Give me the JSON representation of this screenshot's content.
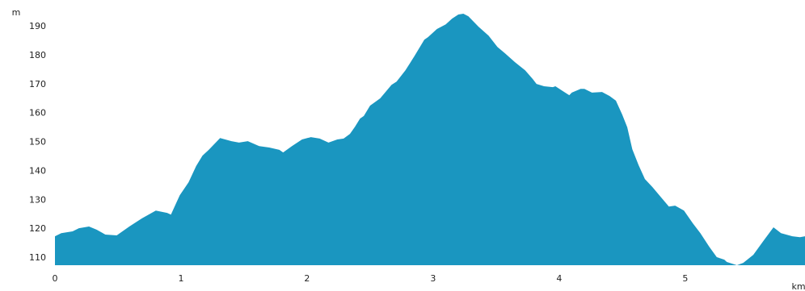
{
  "chart_data": {
    "type": "area",
    "x_label": "km",
    "y_label": "m",
    "color": "#1a96c0",
    "x": [
      0,
      0.05,
      0.14,
      0.19,
      0.27,
      0.33,
      0.4,
      0.49,
      0.59,
      0.69,
      0.8,
      0.89,
      0.92,
      0.99,
      1.06,
      1.12,
      1.17,
      1.22,
      1.31,
      1.4,
      1.46,
      1.53,
      1.62,
      1.7,
      1.78,
      1.81,
      1.88,
      1.96,
      2.03,
      2.1,
      2.17,
      2.24,
      2.29,
      2.34,
      2.38,
      2.42,
      2.45,
      2.5,
      2.58,
      2.67,
      2.71,
      2.78,
      2.85,
      2.93,
      2.96,
      3.03,
      3.1,
      3.15,
      3.2,
      3.24,
      3.28,
      3.36,
      3.44,
      3.51,
      3.57,
      3.65,
      3.73,
      3.79,
      3.82,
      3.88,
      3.95,
      3.97,
      4.03,
      4.08,
      4.1,
      4.17,
      4.2,
      4.26,
      4.34,
      4.4,
      4.45,
      4.5,
      4.54,
      4.58,
      4.63,
      4.68,
      4.74,
      4.81,
      4.87,
      4.92,
      4.99,
      5.06,
      5.12,
      5.19,
      5.25,
      5.31,
      5.33,
      5.41,
      5.46,
      5.54,
      5.62,
      5.7,
      5.76,
      5.85,
      5.91,
      5.95
    ],
    "values": [
      117.5,
      118.6,
      119.2,
      120.3,
      120.9,
      119.8,
      118.1,
      117.8,
      120.9,
      123.7,
      126.4,
      125.6,
      125,
      131.7,
      136.2,
      141.8,
      145.4,
      147.4,
      151.5,
      150.4,
      149.9,
      150.4,
      148.7,
      148.2,
      147.4,
      146.5,
      148.7,
      151,
      151.8,
      151.3,
      149.9,
      151,
      151.3,
      152.9,
      155.4,
      158.2,
      159.1,
      162.7,
      165.2,
      169.9,
      171,
      174.9,
      179.7,
      185.5,
      186.4,
      189.2,
      190.8,
      192.8,
      194.2,
      194.5,
      193.6,
      190,
      186.9,
      183,
      180.8,
      177.7,
      174.9,
      171.9,
      170.2,
      169.4,
      169.1,
      169.4,
      167.7,
      166.3,
      167.2,
      168.5,
      168.5,
      167.2,
      167.4,
      166,
      164.4,
      159.6,
      155.2,
      147.6,
      142.1,
      137.3,
      134.5,
      130.9,
      127.8,
      128.1,
      126.4,
      122,
      118.6,
      113.9,
      110.3,
      109.4,
      108.6,
      107.5,
      108.3,
      111.1,
      115.9,
      120.6,
      118.6,
      117.5,
      117.2,
      117.5
    ],
    "xlim": [
      0,
      5.95
    ],
    "ylim": [
      107.5,
      197
    ],
    "xticks": [
      0,
      1,
      2,
      3,
      4,
      5
    ],
    "yticks": [
      110,
      120,
      130,
      140,
      150,
      160,
      170,
      180,
      190
    ]
  }
}
